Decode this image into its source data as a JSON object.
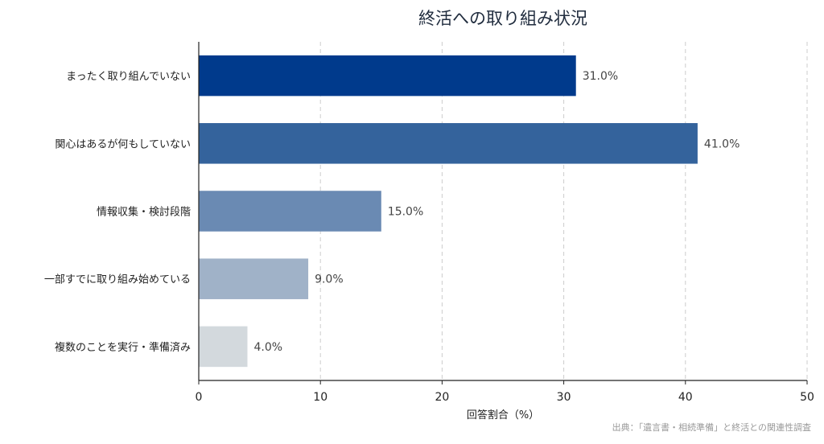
{
  "chart_data": {
    "type": "bar",
    "orientation": "horizontal",
    "title": "終活への取り組み状況",
    "xlabel": "回答割合（%）",
    "ylabel": "",
    "xlim": [
      0,
      50
    ],
    "xticks": [
      0,
      10,
      20,
      30,
      40,
      50
    ],
    "grid": "vertical-dashed",
    "categories": [
      "まったく取り組んでいない",
      "関心はあるが何もしていない",
      "情報収集・検討段階",
      "一部すでに取り組み始めている",
      "複数のことを実行・準備済み"
    ],
    "values": [
      31.0,
      41.0,
      15.0,
      9.0,
      4.0
    ],
    "data_labels": [
      "31.0%",
      "41.0%",
      "15.0%",
      "9.0%",
      "4.0%"
    ],
    "bar_colors": [
      "#003a8c",
      "#34639c",
      "#6a8ab3",
      "#a0b2c8",
      "#d3d9dd"
    ],
    "source_note": "出典：「遺言書・相続準備」と終活との関連性調査"
  }
}
